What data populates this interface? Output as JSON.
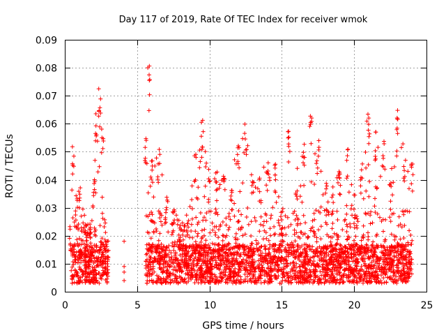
{
  "chart_data": {
    "type": "scatter",
    "title": "Day 117 of 2019, Rate Of TEC Index for receiver wmok",
    "xlabel": "GPS time / hours",
    "ylabel": "ROTI / TECUs",
    "xlim": [
      0,
      25
    ],
    "ylim": [
      0,
      0.09
    ],
    "x_ticks": [
      0,
      5,
      10,
      15,
      20,
      25
    ],
    "y_ticks": [
      0,
      0.01,
      0.02,
      0.03,
      0.04,
      0.05,
      0.06,
      0.07,
      0.08,
      0.09
    ],
    "x_tick_labels": [
      "0",
      "5",
      "10",
      "15",
      "20",
      "25"
    ],
    "y_tick_labels": [
      "0",
      "0.01",
      "0.02",
      "0.03",
      "0.04",
      "0.05",
      "0.06",
      "0.07",
      "0.08",
      "0.09"
    ],
    "grid": true,
    "marker": "+",
    "marker_color": "#ff0000",
    "data_coverage_hours": [
      [
        0.4,
        3.0
      ],
      [
        5.6,
        24.0
      ]
    ],
    "isolated_points": [
      [
        4.1,
        0.018
      ],
      [
        4.1,
        0.009
      ],
      [
        4.1,
        0.007
      ],
      [
        4.1,
        0.004
      ]
    ],
    "envelope": {
      "x": [
        0.4,
        0.6,
        0.8,
        1.0,
        1.2,
        1.4,
        1.6,
        1.8,
        2.0,
        2.2,
        2.4,
        2.6,
        2.8,
        3.0,
        5.6,
        5.8,
        6.0,
        6.5,
        7.0,
        7.5,
        8.0,
        8.5,
        9.0,
        9.5,
        10.0,
        10.5,
        11.0,
        11.5,
        12.0,
        12.5,
        13.0,
        13.5,
        14.0,
        14.5,
        15.0,
        15.5,
        16.0,
        16.5,
        17.0,
        17.5,
        18.0,
        18.5,
        19.0,
        19.5,
        20.0,
        20.5,
        21.0,
        21.5,
        22.0,
        22.5,
        23.0,
        23.5,
        24.0
      ],
      "y": [
        0.024,
        0.053,
        0.036,
        0.041,
        0.03,
        0.024,
        0.023,
        0.026,
        0.042,
        0.064,
        0.073,
        0.06,
        0.022,
        0.018,
        0.055,
        0.081,
        0.052,
        0.051,
        0.034,
        0.031,
        0.025,
        0.027,
        0.05,
        0.062,
        0.044,
        0.044,
        0.045,
        0.043,
        0.054,
        0.061,
        0.042,
        0.042,
        0.047,
        0.046,
        0.031,
        0.059,
        0.045,
        0.057,
        0.064,
        0.054,
        0.039,
        0.038,
        0.043,
        0.052,
        0.036,
        0.046,
        0.066,
        0.059,
        0.054,
        0.04,
        0.066,
        0.05,
        0.046
      ]
    }
  }
}
